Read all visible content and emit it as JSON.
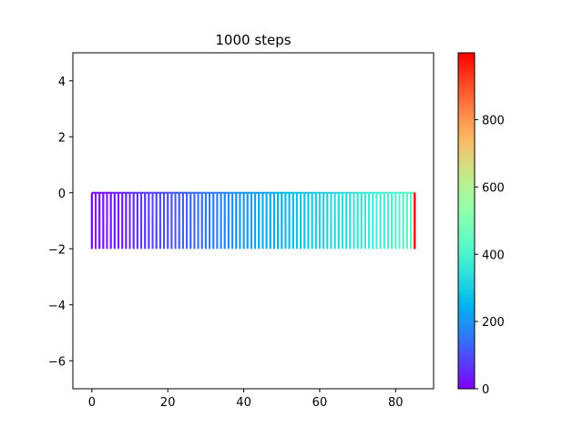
{
  "chart_data": {
    "type": "line",
    "title": "1000 steps",
    "xlabel": "",
    "ylabel": "",
    "xlim": [
      -5,
      90
    ],
    "ylim": [
      -7,
      5
    ],
    "xticks": [
      0,
      20,
      40,
      60,
      80
    ],
    "xtick_labels": [
      "0",
      "20",
      "40",
      "60",
      "80"
    ],
    "yticks": [
      4,
      2,
      0,
      -2,
      -4,
      -6
    ],
    "ytick_labels": [
      "4",
      "2",
      "0",
      "−2",
      "−4",
      "−6"
    ],
    "grid": false,
    "colormap": "rainbow",
    "colorbar": {
      "range": [
        0,
        999
      ],
      "ticks": [
        0,
        200,
        400,
        600,
        800
      ],
      "tick_labels": [
        "0",
        "200",
        "400",
        "600",
        "800"
      ]
    },
    "series": [
      {
        "steps": 1000,
        "start": [
          0,
          0
        ],
        "end": [
          85,
          0
        ],
        "x_range": [
          0,
          85
        ],
        "y_levels": [
          0,
          -1,
          -2
        ],
        "description_of_path": "staircase walk stepping right along y=0 with repeated excursions down to y=-1 and y=-2; color encodes step index 0-999"
      }
    ]
  }
}
